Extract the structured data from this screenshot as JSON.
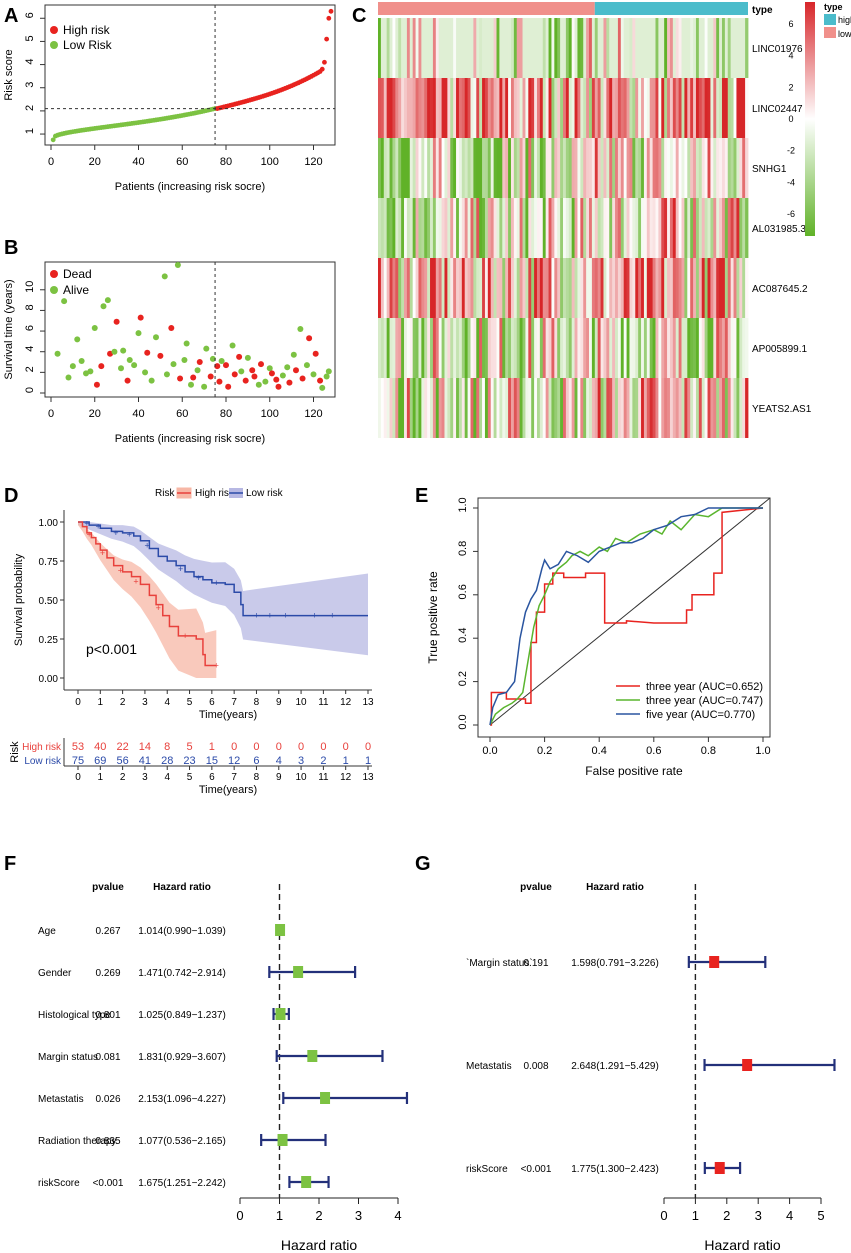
{
  "panels": {
    "A": "A",
    "B": "B",
    "C": "C",
    "D": "D",
    "E": "E",
    "F": "F",
    "G": "G"
  },
  "chart_data": [
    {
      "id": "A",
      "type": "scatter",
      "ylabel": "Risk score",
      "xlabel": "Patients (increasing risk socre)",
      "legend": [
        "High risk",
        "Low Risk"
      ],
      "xticks": [
        "0",
        "20",
        "40",
        "60",
        "80",
        "100",
        "120"
      ],
      "yticks": [
        "1",
        "2",
        "3",
        "4",
        "5",
        "6"
      ],
      "xlim": [
        0,
        128
      ],
      "ylim": [
        0.7,
        6.4
      ],
      "cutoff_index": 75,
      "cutoff_score": 2.1,
      "n_low": 75,
      "n_high": 53,
      "low_range": [
        0.75,
        2.1
      ],
      "high_range": [
        2.1,
        6.3
      ],
      "top_values": [
        3.8,
        4.1,
        5.1,
        6.0,
        6.3
      ]
    },
    {
      "id": "B",
      "type": "scatter",
      "ylabel": "Survival time (years)",
      "xlabel": "Patients (increasing risk socre)",
      "legend": [
        "Dead",
        "Alive"
      ],
      "xticks": [
        "0",
        "20",
        "40",
        "60",
        "80",
        "100",
        "120"
      ],
      "yticks": [
        "0",
        "2",
        "4",
        "6",
        "8",
        "10"
      ],
      "xlim": [
        0,
        128
      ],
      "ylim": [
        0,
        12.4
      ],
      "cutoff_index": 75,
      "points": [
        [
          3,
          3.8,
          "a"
        ],
        [
          6,
          8.9,
          "a"
        ],
        [
          8,
          1.5,
          "a"
        ],
        [
          10,
          2.6,
          "a"
        ],
        [
          12,
          5.2,
          "a"
        ],
        [
          14,
          3.1,
          "a"
        ],
        [
          16,
          1.9,
          "a"
        ],
        [
          18,
          2.1,
          "a"
        ],
        [
          20,
          6.3,
          "a"
        ],
        [
          21,
          0.8,
          "d"
        ],
        [
          23,
          2.6,
          "d"
        ],
        [
          24,
          8.4,
          "a"
        ],
        [
          26,
          9.0,
          "a"
        ],
        [
          27,
          3.8,
          "d"
        ],
        [
          29,
          4.0,
          "a"
        ],
        [
          30,
          6.9,
          "d"
        ],
        [
          32,
          2.4,
          "a"
        ],
        [
          33,
          4.1,
          "a"
        ],
        [
          35,
          1.2,
          "d"
        ],
        [
          36,
          3.2,
          "a"
        ],
        [
          38,
          2.7,
          "a"
        ],
        [
          40,
          5.8,
          "a"
        ],
        [
          41,
          7.3,
          "d"
        ],
        [
          43,
          2.0,
          "a"
        ],
        [
          44,
          3.9,
          "d"
        ],
        [
          46,
          1.2,
          "a"
        ],
        [
          48,
          5.4,
          "a"
        ],
        [
          50,
          3.6,
          "d"
        ],
        [
          52,
          11.3,
          "a"
        ],
        [
          53,
          1.8,
          "a"
        ],
        [
          55,
          6.3,
          "d"
        ],
        [
          56,
          2.8,
          "a"
        ],
        [
          58,
          12.4,
          "a"
        ],
        [
          59,
          1.4,
          "d"
        ],
        [
          61,
          3.2,
          "a"
        ],
        [
          62,
          4.8,
          "a"
        ],
        [
          64,
          0.8,
          "a"
        ],
        [
          65,
          1.5,
          "d"
        ],
        [
          67,
          2.2,
          "a"
        ],
        [
          68,
          3.0,
          "d"
        ],
        [
          70,
          0.6,
          "a"
        ],
        [
          71,
          4.3,
          "a"
        ],
        [
          73,
          1.6,
          "d"
        ],
        [
          74,
          3.3,
          "a"
        ],
        [
          76,
          2.6,
          "d"
        ],
        [
          77,
          1.1,
          "d"
        ],
        [
          78,
          3.1,
          "a"
        ],
        [
          80,
          2.7,
          "d"
        ],
        [
          81,
          0.6,
          "d"
        ],
        [
          83,
          4.6,
          "a"
        ],
        [
          84,
          1.8,
          "d"
        ],
        [
          86,
          3.5,
          "d"
        ],
        [
          87,
          2.1,
          "a"
        ],
        [
          89,
          1.2,
          "d"
        ],
        [
          90,
          3.4,
          "a"
        ],
        [
          92,
          2.2,
          "d"
        ],
        [
          93,
          1.6,
          "d"
        ],
        [
          95,
          0.8,
          "a"
        ],
        [
          96,
          2.8,
          "d"
        ],
        [
          98,
          1.1,
          "a"
        ],
        [
          100,
          2.4,
          "a"
        ],
        [
          101,
          1.9,
          "d"
        ],
        [
          103,
          1.3,
          "d"
        ],
        [
          104,
          0.6,
          "d"
        ],
        [
          106,
          1.7,
          "a"
        ],
        [
          108,
          2.5,
          "a"
        ],
        [
          109,
          1.0,
          "d"
        ],
        [
          111,
          3.7,
          "a"
        ],
        [
          112,
          2.2,
          "d"
        ],
        [
          114,
          6.2,
          "a"
        ],
        [
          115,
          1.4,
          "d"
        ],
        [
          117,
          2.7,
          "a"
        ],
        [
          118,
          5.3,
          "d"
        ],
        [
          120,
          1.8,
          "a"
        ],
        [
          121,
          3.8,
          "d"
        ],
        [
          123,
          1.2,
          "d"
        ],
        [
          124,
          0.5,
          "a"
        ],
        [
          126,
          1.6,
          "a"
        ],
        [
          127,
          2.1,
          "a"
        ]
      ]
    },
    {
      "id": "C",
      "type": "heatmap",
      "rows": [
        "LINC01976",
        "LINC02447",
        "SNHG1",
        "AL031985.3",
        "AC087645.2",
        "AP005899.1",
        "YEATS2.AS1"
      ],
      "n_cols": 128,
      "n_low": 75,
      "n_high": 53,
      "annotation_label": "type",
      "annotation_legend": [
        "high",
        "low"
      ],
      "scale_ticks": [
        "6",
        "4",
        "2",
        "0",
        "-2",
        "-4",
        "-6"
      ],
      "scale_range": [
        -7,
        7
      ]
    },
    {
      "id": "D",
      "type": "line",
      "title": "Risk",
      "ylabel": "Survival probability",
      "xlabel": "Time(years)",
      "series": [
        {
          "name": "High risk",
          "color": "#e8413c"
        },
        {
          "name": "Low risk",
          "color": "#2b4aa8"
        }
      ],
      "annotation": "p<0.001",
      "xticks": [
        "0",
        "1",
        "2",
        "3",
        "4",
        "5",
        "6",
        "7",
        "8",
        "9",
        "10",
        "11",
        "12",
        "13"
      ],
      "yticks": [
        "0.00",
        "0.25",
        "0.50",
        "0.75",
        "1.00"
      ],
      "xlim": [
        0,
        13
      ],
      "ylim": [
        0,
        1
      ],
      "table": {
        "row_label": "Risk",
        "xlabel": "Time(years)",
        "rows": [
          {
            "name": "High risk",
            "values": [
              "53",
              "40",
              "22",
              "14",
              "8",
              "5",
              "1",
              "0",
              "0",
              "0",
              "0",
              "0",
              "0",
              "0"
            ]
          },
          {
            "name": "Low risk",
            "values": [
              "75",
              "69",
              "56",
              "41",
              "28",
              "23",
              "15",
              "12",
              "6",
              "4",
              "3",
              "2",
              "1",
              "1"
            ]
          }
        ]
      }
    },
    {
      "id": "E",
      "type": "line",
      "xlabel": "False positive rate",
      "ylabel": "True positive rate",
      "xticks": [
        "0.0",
        "0.2",
        "0.4",
        "0.6",
        "0.8",
        "1.0"
      ],
      "yticks": [
        "0.0",
        "0.2",
        "0.4",
        "0.6",
        "0.8",
        "1.0"
      ],
      "xlim": [
        0,
        1
      ],
      "ylim": [
        0,
        1
      ],
      "series": [
        {
          "name": "three year (AUC=0.652)",
          "color": "#e8231f",
          "x": [
            0,
            0.005,
            0.005,
            0.06,
            0.06,
            0.13,
            0.13,
            0.15,
            0.15,
            0.17,
            0.17,
            0.2,
            0.2,
            0.23,
            0.23,
            0.27,
            0.27,
            0.35,
            0.35,
            0.42,
            0.42,
            0.5,
            0.5,
            0.6,
            0.72,
            0.72,
            0.74,
            0.74,
            0.82,
            0.82,
            0.85,
            0.85,
            1
          ],
          "y": [
            0,
            0,
            0.15,
            0.15,
            0.12,
            0.12,
            0.1,
            0.1,
            0.38,
            0.38,
            0.52,
            0.52,
            0.65,
            0.65,
            0.7,
            0.7,
            0.68,
            0.68,
            0.7,
            0.7,
            0.47,
            0.47,
            0.48,
            0.47,
            0.47,
            0.53,
            0.53,
            0.6,
            0.6,
            0.7,
            0.7,
            0.98,
            1
          ]
        },
        {
          "name": "three year (AUC=0.747)",
          "color": "#5ab52e",
          "x": [
            0,
            0.02,
            0.05,
            0.08,
            0.1,
            0.12,
            0.14,
            0.16,
            0.18,
            0.2,
            0.22,
            0.25,
            0.28,
            0.3,
            0.33,
            0.36,
            0.4,
            0.43,
            0.46,
            0.5,
            0.55,
            0.6,
            0.63,
            0.66,
            0.7,
            0.75,
            0.8,
            0.85,
            0.9,
            1
          ],
          "y": [
            0,
            0.05,
            0.08,
            0.1,
            0.12,
            0.15,
            0.3,
            0.45,
            0.55,
            0.6,
            0.66,
            0.72,
            0.75,
            0.78,
            0.8,
            0.78,
            0.82,
            0.8,
            0.86,
            0.84,
            0.88,
            0.9,
            0.88,
            0.94,
            0.9,
            0.97,
            0.96,
            1.0,
            1.0,
            1
          ]
        },
        {
          "name": "five year (AUC=0.770)",
          "color": "#2a55a0",
          "x": [
            0,
            0.01,
            0.03,
            0.06,
            0.09,
            0.11,
            0.13,
            0.15,
            0.17,
            0.19,
            0.2,
            0.22,
            0.25,
            0.28,
            0.32,
            0.36,
            0.4,
            0.44,
            0.48,
            0.52,
            0.56,
            0.6,
            0.65,
            0.7,
            0.75,
            0.8,
            0.85,
            0.9,
            1
          ],
          "y": [
            0,
            0.08,
            0.14,
            0.15,
            0.2,
            0.4,
            0.52,
            0.58,
            0.62,
            0.72,
            0.76,
            0.72,
            0.74,
            0.8,
            0.78,
            0.75,
            0.8,
            0.82,
            0.84,
            0.84,
            0.86,
            0.9,
            0.92,
            0.96,
            0.97,
            1.0,
            1.0,
            1.0,
            1
          ]
        }
      ]
    },
    {
      "id": "F",
      "type": "forest",
      "col_headers": [
        "pvalue",
        "Hazard ratio"
      ],
      "xlabel": "Hazard ratio",
      "xticks": [
        "0",
        "1",
        "2",
        "3",
        "4"
      ],
      "xlim": [
        0,
        4
      ],
      "ref": 1,
      "rows": [
        {
          "label": "Age",
          "pvalue": "0.267",
          "hr_text": "1.014(0.990−1.039)",
          "hr": 1.014,
          "lo": 0.99,
          "hi": 1.039
        },
        {
          "label": "Gender",
          "pvalue": "0.269",
          "hr_text": "1.471(0.742−2.914)",
          "hr": 1.471,
          "lo": 0.742,
          "hi": 2.914
        },
        {
          "label": "Histological type",
          "pvalue": "0.801",
          "hr_text": "1.025(0.849−1.237)",
          "hr": 1.025,
          "lo": 0.849,
          "hi": 1.237
        },
        {
          "label": "Margin status",
          "pvalue": "0.081",
          "hr_text": "1.831(0.929−3.607)",
          "hr": 1.831,
          "lo": 0.929,
          "hi": 3.607
        },
        {
          "label": "Metastatis",
          "pvalue": "0.026",
          "hr_text": "2.153(1.096−4.227)",
          "hr": 2.153,
          "lo": 1.096,
          "hi": 4.227
        },
        {
          "label": "Radiation therapy",
          "pvalue": "0.835",
          "hr_text": "1.077(0.536−2.165)",
          "hr": 1.077,
          "lo": 0.536,
          "hi": 2.165
        },
        {
          "label": "riskScore",
          "pvalue": "<0.001",
          "hr_text": "1.675(1.251−2.242)",
          "hr": 1.675,
          "lo": 1.251,
          "hi": 2.242
        }
      ]
    },
    {
      "id": "G",
      "type": "forest",
      "col_headers": [
        "pvalue",
        "Hazard ratio"
      ],
      "xlabel": "Hazard ratio",
      "xticks": [
        "0",
        "1",
        "2",
        "3",
        "4",
        "5"
      ],
      "xlim": [
        0,
        5
      ],
      "ref": 1,
      "rows": [
        {
          "label": "`Margin status`",
          "pvalue": "0.191",
          "hr_text": "1.598(0.791−3.226)",
          "hr": 1.598,
          "lo": 0.791,
          "hi": 3.226
        },
        {
          "label": "Metastatis",
          "pvalue": "0.008",
          "hr_text": "2.648(1.291−5.429)",
          "hr": 2.648,
          "lo": 1.291,
          "hi": 5.429
        },
        {
          "label": "riskScore",
          "pvalue": "<0.001",
          "hr_text": "1.775(1.300−2.423)",
          "hr": 1.775,
          "lo": 1.3,
          "hi": 2.423
        }
      ]
    }
  ],
  "colors": {
    "red": "#e8231f",
    "green": "#7cc242",
    "blue": "#2b4aa8",
    "teal": "#4bbccb",
    "salmon": "#f0908b",
    "forestNavy": "#23307a"
  }
}
